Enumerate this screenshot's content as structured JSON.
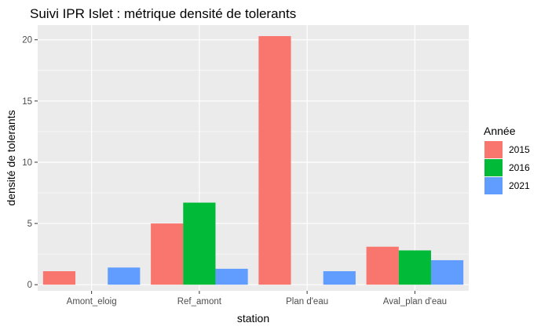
{
  "chart_data": {
    "type": "bar",
    "title": "Suivi IPR Islet : métrique densité de tolerants",
    "xlabel": "station",
    "ylabel": "densité de tolerants",
    "categories": [
      "Amont_eloig",
      "Ref_amont",
      "Plan d'eau",
      "Aval_plan d'eau"
    ],
    "ylim": [
      -0.5,
      21.2
    ],
    "yticks": [
      0,
      5,
      10,
      15,
      20
    ],
    "grid": true,
    "legend": {
      "title": "Année",
      "placement": "right"
    },
    "series": [
      {
        "name": "2015",
        "color": "#F8766D",
        "values": [
          1.1,
          5.0,
          20.3,
          3.1
        ]
      },
      {
        "name": "2016",
        "color": "#00BA38",
        "values": [
          null,
          6.7,
          null,
          2.8
        ]
      },
      {
        "name": "2021",
        "color": "#619CFF",
        "values": [
          1.4,
          1.3,
          1.1,
          2.0
        ]
      }
    ],
    "panel_color": "#EBEBEB",
    "grid_color": "#FFFFFF"
  }
}
